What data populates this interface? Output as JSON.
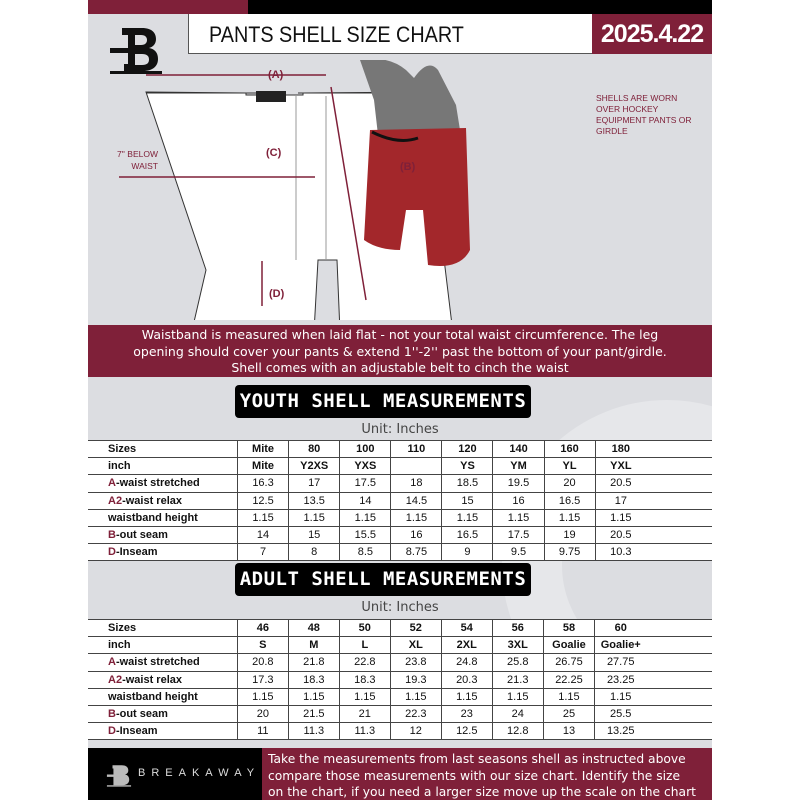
{
  "header": {
    "title": "PANTS SHELL SIZE CHART",
    "date": "2025.4.22"
  },
  "diagram": {
    "label_a": "(A)",
    "label_b": "(B)",
    "label_c": "(C)",
    "label_d": "(D)",
    "below_waist": "7'' BELOW WAIST",
    "worn_note": "SHELLS ARE WORN OVER HOCKEY EQUIPMENT PANTS OR GIRDLE"
  },
  "banner": {
    "line1": "Waistband is measured when laid flat - not your total waist circumference. The leg",
    "line2": "opening should cover your pants & extend 1''-2'' past the bottom of your pant/girdle.",
    "line3": "Shell comes with an adjustable belt to cinch the waist"
  },
  "colors": {
    "maroon": "#7f2039",
    "background": "#dcdde1"
  },
  "youth": {
    "title": "YOUTH SHELL MEASUREMENTS",
    "unit": "Unit: Inches",
    "rows": [
      {
        "prefix": "",
        "label": "Sizes",
        "values": [
          "Mite",
          "80",
          "100",
          "110",
          "120",
          "140",
          "160",
          "180"
        ],
        "bold": true
      },
      {
        "prefix": "",
        "label": "inch",
        "values": [
          "Mite",
          "Y2XS",
          "YXS",
          "",
          "YS",
          "YM",
          "YL",
          "YXL"
        ],
        "bold": true
      },
      {
        "prefix": "A",
        "label": "-waist stretched",
        "values": [
          "16.3",
          "17",
          "17.5",
          "18",
          "18.5",
          "19.5",
          "20",
          "20.5"
        ]
      },
      {
        "prefix": "A2",
        "label": "-waist relax",
        "values": [
          "12.5",
          "13.5",
          "14",
          "14.5",
          "15",
          "16",
          "16.5",
          "17"
        ]
      },
      {
        "prefix": "",
        "label": "waistband height",
        "values": [
          "1.15",
          "1.15",
          "1.15",
          "1.15",
          "1.15",
          "1.15",
          "1.15",
          "1.15"
        ]
      },
      {
        "prefix": "B",
        "label": "-out seam",
        "values": [
          "14",
          "15",
          "15.5",
          "16",
          "16.5",
          "17.5",
          "19",
          "20.5"
        ]
      },
      {
        "prefix": "D",
        "label": "-Inseam",
        "values": [
          "7",
          "8",
          "8.5",
          "8.75",
          "9",
          "9.5",
          "9.75",
          "10.3"
        ]
      }
    ]
  },
  "adult": {
    "title": "ADULT SHELL MEASUREMENTS",
    "unit": "Unit: Inches",
    "rows": [
      {
        "prefix": "",
        "label": "Sizes",
        "values": [
          "46",
          "48",
          "50",
          "52",
          "54",
          "56",
          "58",
          "60"
        ],
        "bold": true
      },
      {
        "prefix": "",
        "label": "inch",
        "values": [
          "S",
          "M",
          "L",
          "XL",
          "2XL",
          "3XL",
          "Goalie",
          "Goalie+"
        ],
        "bold": true
      },
      {
        "prefix": "A",
        "label": "-waist stretched",
        "values": [
          "20.8",
          "21.8",
          "22.8",
          "23.8",
          "24.8",
          "25.8",
          "26.75",
          "27.75"
        ]
      },
      {
        "prefix": "A2",
        "label": "-waist relax",
        "values": [
          "17.3",
          "18.3",
          "18.3",
          "19.3",
          "20.3",
          "21.3",
          "22.25",
          "23.25"
        ]
      },
      {
        "prefix": "",
        "label": "waistband height",
        "values": [
          "1.15",
          "1.15",
          "1.15",
          "1.15",
          "1.15",
          "1.15",
          "1.15",
          "1.15"
        ]
      },
      {
        "prefix": "B",
        "label": "-out seam",
        "values": [
          "20",
          "21.5",
          "21",
          "22.3",
          "23",
          "24",
          "25",
          "25.5"
        ]
      },
      {
        "prefix": "D",
        "label": "-Inseam",
        "values": [
          "11",
          "11.3",
          "11.3",
          "12",
          "12.5",
          "12.8",
          "13",
          "13.25"
        ]
      }
    ]
  },
  "footer": {
    "brand": "BREAKAWAY",
    "line1": "Take the measurements from last seasons shell as instructed above",
    "line2": "compare those measurements  with our size chart. Identify the size",
    "line3": "on the chart, if you need a larger size move up the scale on the chart"
  }
}
